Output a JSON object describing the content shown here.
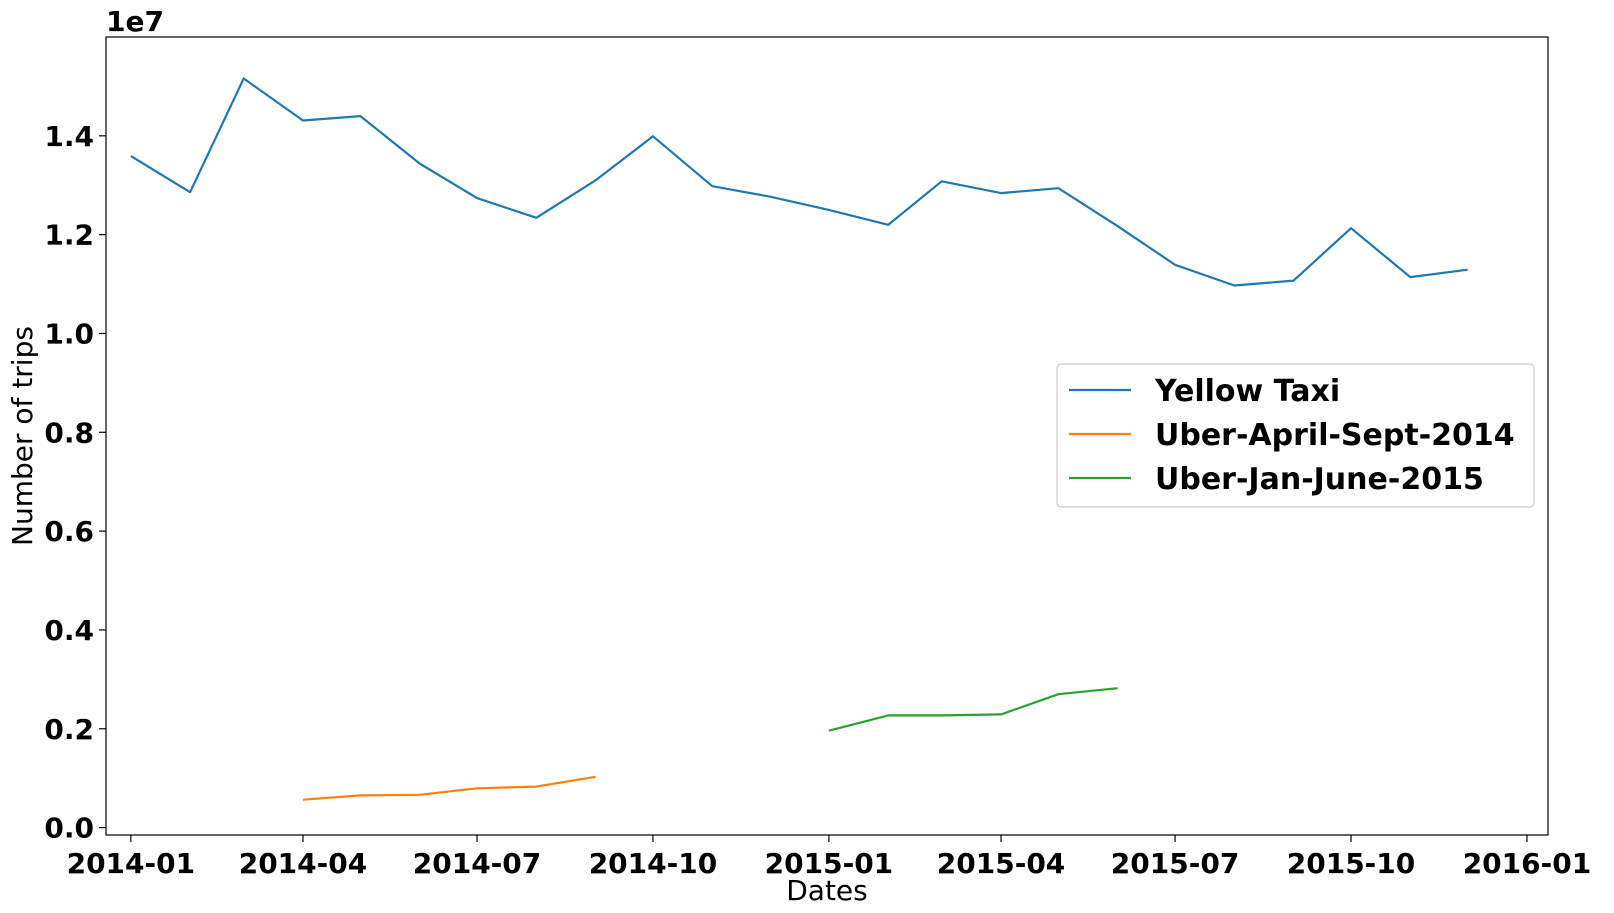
{
  "chart_data": {
    "type": "line",
    "title": "",
    "xlabel": "Dates",
    "ylabel": "Number of trips",
    "y_offset_text": "1e7",
    "x_ticks": [
      "2014-01",
      "2014-04",
      "2014-07",
      "2014-10",
      "2015-01",
      "2015-04",
      "2015-07",
      "2015-10",
      "2016-01"
    ],
    "y_ticks": [
      "0.0",
      "0.2",
      "0.4",
      "0.6",
      "0.8",
      "1.0",
      "1.2",
      "1.4"
    ],
    "y_tick_values": [
      0,
      2000000,
      4000000,
      6000000,
      8000000,
      10000000,
      12000000,
      14000000
    ],
    "xlim": [
      "2013-12-19",
      "2016-01-12"
    ],
    "ylim": [
      -150000,
      16000000
    ],
    "grid": false,
    "legend_position": "center-right",
    "series": [
      {
        "name": "Yellow Taxi",
        "color": "#1f77b4",
        "x": [
          "2014-01-01",
          "2014-02-01",
          "2014-03-01",
          "2014-04-01",
          "2014-05-01",
          "2014-06-01",
          "2014-07-01",
          "2014-08-01",
          "2014-09-01",
          "2014-10-01",
          "2014-11-01",
          "2014-12-01",
          "2015-01-01",
          "2015-02-01",
          "2015-03-01",
          "2015-04-01",
          "2015-05-01",
          "2015-06-01",
          "2015-07-01",
          "2015-08-01",
          "2015-09-01",
          "2015-10-01",
          "2015-11-01",
          "2015-12-01"
        ],
        "values": [
          13590000,
          12860000,
          15160000,
          14310000,
          14400000,
          13440000,
          12740000,
          12340000,
          13100000,
          13990000,
          12980000,
          12770000,
          12500000,
          12200000,
          13080000,
          12840000,
          12940000,
          12170000,
          11390000,
          10970000,
          11070000,
          12130000,
          11140000,
          11290000
        ]
      },
      {
        "name": "Uber-April-Sept-2014",
        "color": "#ff7f0e",
        "x": [
          "2014-04-01",
          "2014-05-01",
          "2014-06-01",
          "2014-07-01",
          "2014-08-01",
          "2014-09-01"
        ],
        "values": [
          564516,
          652435,
          663844,
          796121,
          829275,
          1028136
        ]
      },
      {
        "name": "Uber-Jan-June-2015",
        "color": "#2ca02c",
        "x": [
          "2015-01-01",
          "2015-02-01",
          "2015-03-01",
          "2015-04-01",
          "2015-05-01",
          "2015-06-01"
        ],
        "values": [
          1960000,
          2270000,
          2270000,
          2290000,
          2700000,
          2820000
        ]
      }
    ]
  }
}
